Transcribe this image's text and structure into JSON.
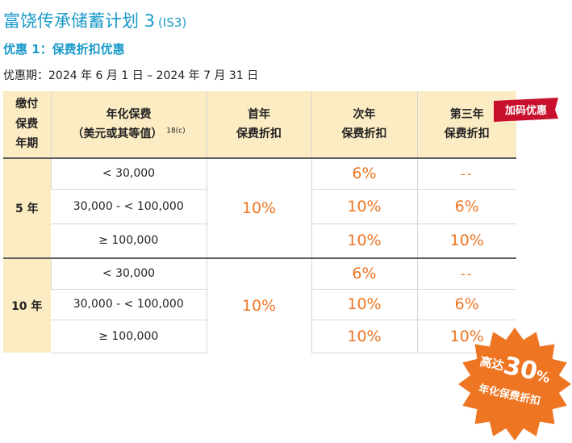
{
  "header": {
    "title": "富饶传承储蓄计划 3",
    "code": "(IS3)",
    "subtitle": "优惠 1：保费折扣优惠",
    "period": "优惠期：2024 年 6 月 1 日 – 2024 年 7 月 31 日"
  },
  "table": {
    "headers": {
      "term": [
        "缴付",
        "保费",
        "年期"
      ],
      "premium_line1": "年化保费",
      "premium_line2": "（美元或其等值）",
      "premium_note": "18(c)",
      "first_year": [
        "首年",
        "保费折扣"
      ],
      "second_year": [
        "次年",
        "保费折扣"
      ],
      "third_year": [
        "第三年",
        "保费折扣"
      ]
    },
    "groups": [
      {
        "term": "5 年",
        "first_year": "10%",
        "rows": [
          {
            "band": "< 30,000",
            "second": "6%",
            "third": "--"
          },
          {
            "band": "30,000 - < 100,000",
            "second": "10%",
            "third": "6%"
          },
          {
            "band": "≥ 100,000",
            "second": "10%",
            "third": "10%"
          }
        ]
      },
      {
        "term": "10 年",
        "first_year": "10%",
        "rows": [
          {
            "band": "< 30,000",
            "second": "6%",
            "third": "--"
          },
          {
            "band": "30,000 - < 100,000",
            "second": "10%",
            "third": "6%"
          },
          {
            "band": "≥ 100,000",
            "second": "10%",
            "third": "10%"
          }
        ]
      }
    ]
  },
  "flag": {
    "label": "加码优惠",
    "color": "#c8102e"
  },
  "badge": {
    "prefix": "高达",
    "value": "30",
    "unit": "%",
    "caption": "年化保费折扣",
    "color": "#ee7623"
  },
  "colors": {
    "accent": "#1a9ac9",
    "header_bg": "#fbecc3",
    "percent": "#ee7623"
  }
}
